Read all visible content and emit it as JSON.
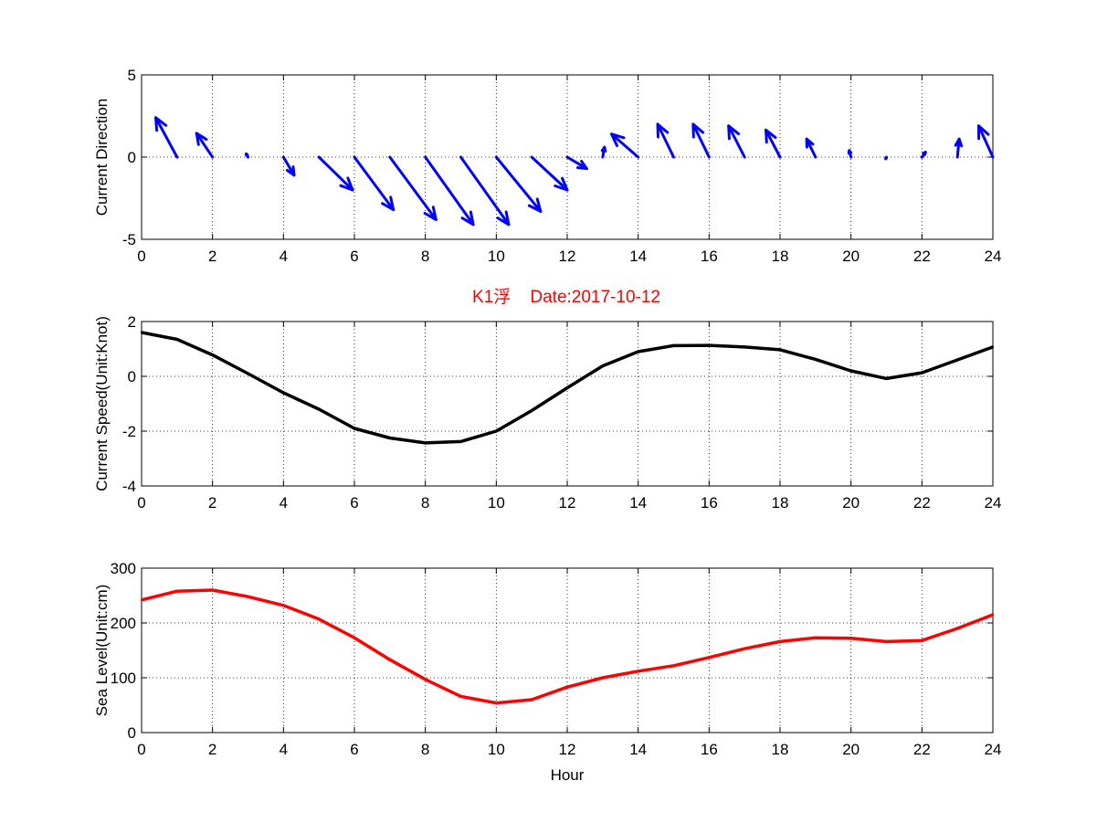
{
  "figure": {
    "title": "K1浮    Date:2017-10-12",
    "title_color": "#ff0000"
  },
  "chart_data": [
    {
      "type": "quiver",
      "ylabel": "Current Direction",
      "xlim": [
        0,
        24
      ],
      "ylim": [
        -5,
        5
      ],
      "xticks": [
        0,
        2,
        4,
        6,
        8,
        10,
        12,
        14,
        16,
        18,
        20,
        22,
        24
      ],
      "yticks": [
        -5,
        0,
        5
      ],
      "grid": true,
      "color": "#0000ff",
      "vectors": [
        {
          "x": 1,
          "u": -0.6,
          "v": 2.4
        },
        {
          "x": 2,
          "u": -0.45,
          "v": 1.45
        },
        {
          "x": 3,
          "u": -0.05,
          "v": 0.2
        },
        {
          "x": 4,
          "u": 0.3,
          "v": -1.1
        },
        {
          "x": 5,
          "u": 0.95,
          "v": -2.0
        },
        {
          "x": 6,
          "u": 1.1,
          "v": -3.2
        },
        {
          "x": 7,
          "u": 1.3,
          "v": -3.8
        },
        {
          "x": 8,
          "u": 1.35,
          "v": -4.1
        },
        {
          "x": 9,
          "u": 1.35,
          "v": -4.1
        },
        {
          "x": 10,
          "u": 1.25,
          "v": -3.3
        },
        {
          "x": 11,
          "u": 1.0,
          "v": -2.0
        },
        {
          "x": 12,
          "u": 0.55,
          "v": -0.7
        },
        {
          "x": 13,
          "u": 0.05,
          "v": 0.6
        },
        {
          "x": 14,
          "u": -0.75,
          "v": 1.4
        },
        {
          "x": 15,
          "u": -0.45,
          "v": 2.0
        },
        {
          "x": 16,
          "u": -0.45,
          "v": 2.0
        },
        {
          "x": 17,
          "u": -0.45,
          "v": 1.9
        },
        {
          "x": 18,
          "u": -0.4,
          "v": 1.65
        },
        {
          "x": 19,
          "u": -0.25,
          "v": 1.1
        },
        {
          "x": 20,
          "u": -0.05,
          "v": 0.4
        },
        {
          "x": 21,
          "u": -0.02,
          "v": -0.1
        },
        {
          "x": 22,
          "u": 0.1,
          "v": 0.3
        },
        {
          "x": 23,
          "u": 0.05,
          "v": 1.1
        },
        {
          "x": 24,
          "u": -0.4,
          "v": 1.9
        }
      ]
    },
    {
      "type": "line",
      "ylabel": "Current Speed(Unit:Knot)",
      "xlim": [
        0,
        24
      ],
      "ylim": [
        -4,
        2
      ],
      "xticks": [
        0,
        2,
        4,
        6,
        8,
        10,
        12,
        14,
        16,
        18,
        20,
        22,
        24
      ],
      "yticks": [
        -4,
        -2,
        0,
        2
      ],
      "grid": true,
      "color": "#000000",
      "x": [
        0,
        1,
        2,
        3,
        4,
        5,
        6,
        7,
        8,
        9,
        10,
        11,
        12,
        13,
        14,
        15,
        16,
        17,
        18,
        19,
        20,
        21,
        22,
        23,
        24
      ],
      "y": [
        1.6,
        1.35,
        0.78,
        0.1,
        -0.6,
        -1.2,
        -1.9,
        -2.25,
        -2.43,
        -2.38,
        -2.0,
        -1.25,
        -0.42,
        0.38,
        0.9,
        1.12,
        1.13,
        1.07,
        0.97,
        0.62,
        0.2,
        -0.08,
        0.13,
        0.6,
        1.07
      ]
    },
    {
      "type": "line",
      "xlabel": "Hour",
      "ylabel": "Sea Level(Unit:cm)",
      "xlim": [
        0,
        24
      ],
      "ylim": [
        0,
        300
      ],
      "xticks": [
        0,
        2,
        4,
        6,
        8,
        10,
        12,
        14,
        16,
        18,
        20,
        22,
        24
      ],
      "yticks": [
        0,
        100,
        200,
        300
      ],
      "grid": true,
      "color": "#ff0000",
      "x": [
        0,
        1,
        2,
        3,
        4,
        5,
        6,
        7,
        8,
        9,
        10,
        11,
        12,
        13,
        14,
        15,
        16,
        17,
        18,
        19,
        20,
        21,
        22,
        23,
        24
      ],
      "y": [
        242,
        258,
        260,
        248,
        232,
        207,
        173,
        133,
        97,
        66,
        54,
        60,
        83,
        100,
        112,
        122,
        137,
        153,
        166,
        173,
        172,
        166,
        168,
        190,
        215
      ]
    }
  ]
}
